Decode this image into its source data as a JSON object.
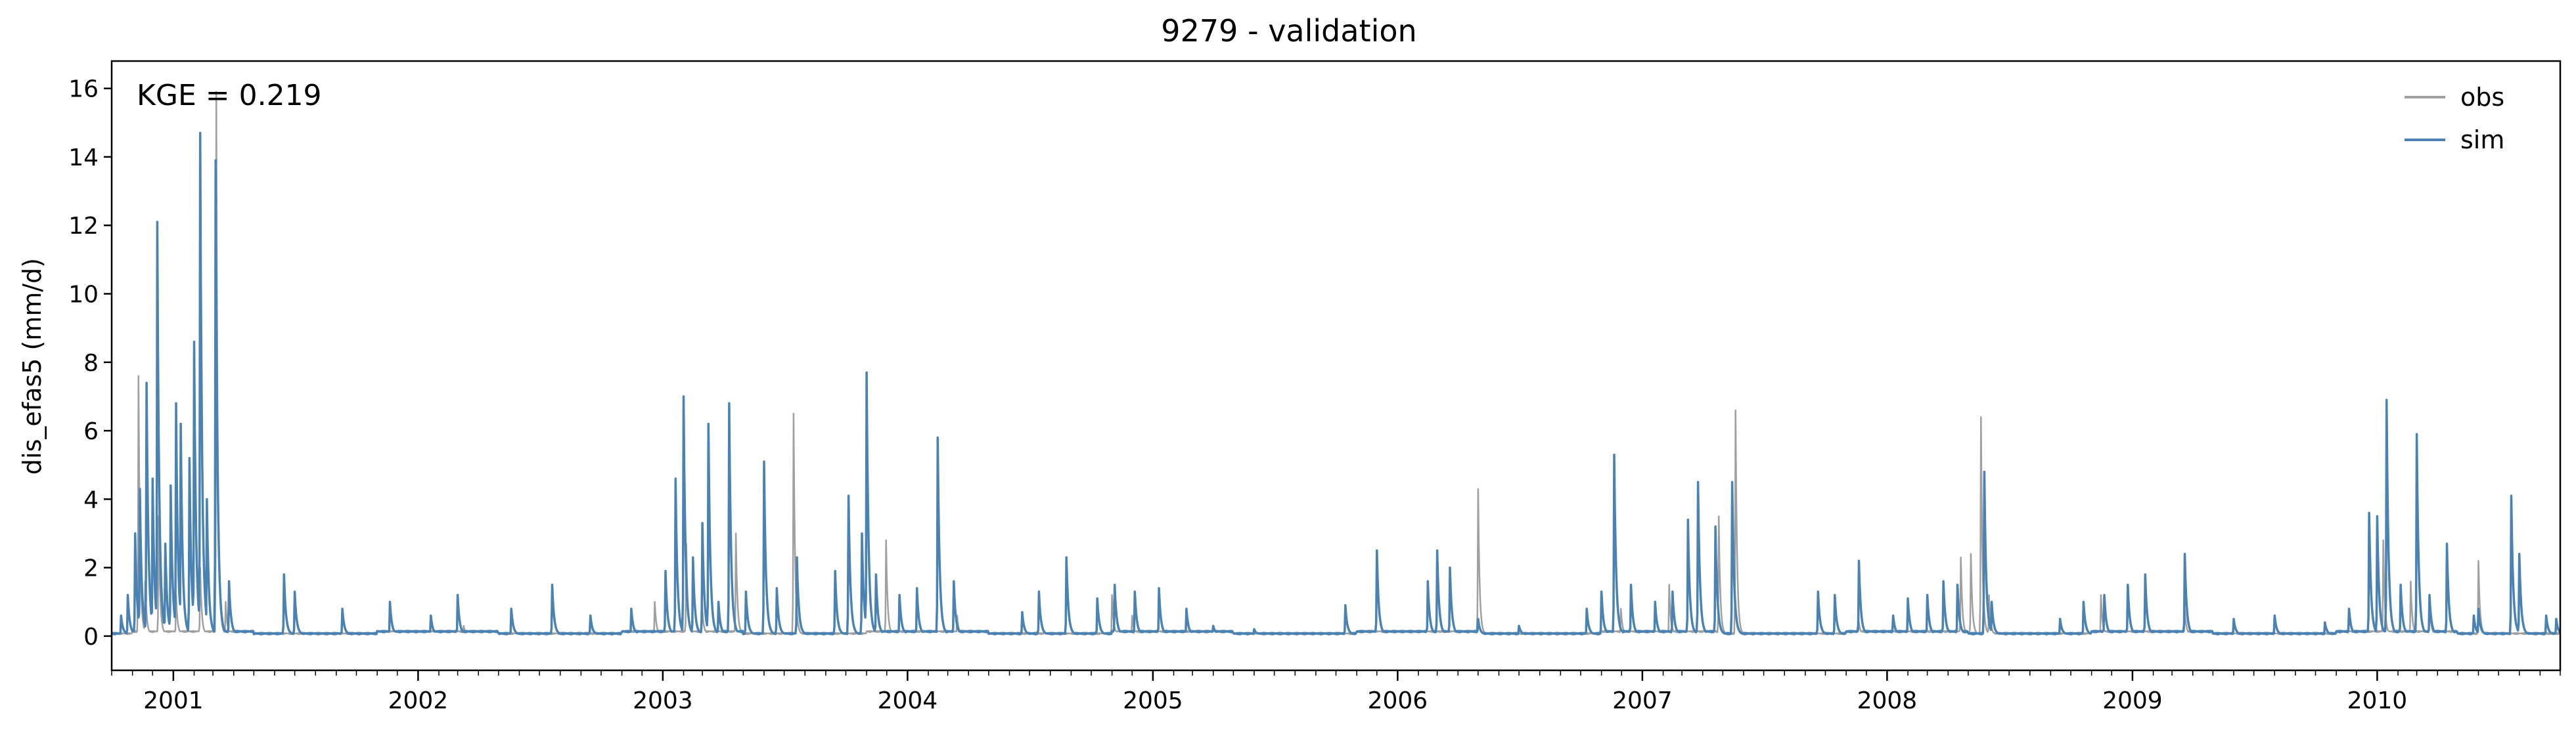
{
  "chart_data": {
    "type": "line",
    "title": "9279 - validation",
    "ylabel": "dis_efas5 (mm/d)",
    "xlabel": "",
    "annotation": "KGE = 0.219",
    "xlim": [
      "2000-10-01",
      "2010-10-01"
    ],
    "ylim": [
      -1,
      16.8
    ],
    "yticks": [
      0,
      2,
      4,
      6,
      8,
      10,
      12,
      14,
      16
    ],
    "xticks": [
      "2001",
      "2002",
      "2003",
      "2004",
      "2005",
      "2006",
      "2007",
      "2008",
      "2009",
      "2010"
    ],
    "grid": false,
    "legend": "top-right",
    "baseline": 0.05,
    "series": [
      {
        "name": "obs",
        "color": "#a0a0a0",
        "peaks": [
          [
            "2000-11-10",
            7.6
          ],
          [
            "2000-11-20",
            1.6
          ],
          [
            "2000-12-10",
            3.5
          ],
          [
            "2001-01-05",
            1.2
          ],
          [
            "2001-02-10",
            2.0
          ],
          [
            "2001-03-06",
            15.9
          ],
          [
            "2001-03-20",
            1.0
          ],
          [
            "2002-03-10",
            0.3
          ],
          [
            "2002-12-20",
            1.0
          ],
          [
            "2003-02-05",
            2.7
          ],
          [
            "2003-02-28",
            1.2
          ],
          [
            "2003-04-20",
            3.0
          ],
          [
            "2003-07-15",
            6.5
          ],
          [
            "2003-11-30",
            2.8
          ],
          [
            "2004-03-15",
            0.6
          ],
          [
            "2004-11-01",
            1.2
          ],
          [
            "2004-12-01",
            0.6
          ],
          [
            "2005-04-01",
            0.3
          ],
          [
            "2006-05-01",
            4.3
          ],
          [
            "2006-11-30",
            0.8
          ],
          [
            "2007-02-10",
            1.5
          ],
          [
            "2007-04-25",
            3.5
          ],
          [
            "2007-05-20",
            6.6
          ],
          [
            "2007-11-20",
            0.4
          ],
          [
            "2008-04-20",
            2.3
          ],
          [
            "2008-05-05",
            2.4
          ],
          [
            "2008-05-20",
            6.4
          ],
          [
            "2008-06-01",
            1.2
          ],
          [
            "2008-11-15",
            1.2
          ],
          [
            "2009-03-20",
            0.8
          ],
          [
            "2010-01-10",
            2.8
          ],
          [
            "2010-02-20",
            1.6
          ],
          [
            "2010-03-20",
            1.0
          ],
          [
            "2010-06-01",
            2.2
          ]
        ]
      },
      {
        "name": "sim",
        "color": "#4a82b4",
        "peaks": [
          [
            "2000-10-15",
            0.6
          ],
          [
            "2000-10-25",
            1.2
          ],
          [
            "2000-11-05",
            3.0
          ],
          [
            "2000-11-12",
            4.3
          ],
          [
            "2000-11-22",
            7.4
          ],
          [
            "2000-12-01",
            4.6
          ],
          [
            "2000-12-08",
            12.1
          ],
          [
            "2000-12-20",
            2.7
          ],
          [
            "2000-12-28",
            4.4
          ],
          [
            "2001-01-05",
            6.8
          ],
          [
            "2001-01-12",
            6.2
          ],
          [
            "2001-01-25",
            5.2
          ],
          [
            "2001-02-01",
            8.6
          ],
          [
            "2001-02-10",
            14.7
          ],
          [
            "2001-02-20",
            4.0
          ],
          [
            "2001-03-05",
            13.9
          ],
          [
            "2001-03-25",
            1.6
          ],
          [
            "2001-06-15",
            1.8
          ],
          [
            "2001-07-01",
            1.3
          ],
          [
            "2001-09-10",
            0.8
          ],
          [
            "2001-11-20",
            1.0
          ],
          [
            "2002-01-20",
            0.6
          ],
          [
            "2002-03-01",
            1.2
          ],
          [
            "2002-05-20",
            0.8
          ],
          [
            "2002-07-20",
            1.5
          ],
          [
            "2002-09-15",
            0.6
          ],
          [
            "2002-11-15",
            0.8
          ],
          [
            "2003-01-05",
            1.9
          ],
          [
            "2003-01-20",
            4.6
          ],
          [
            "2003-02-01",
            7.0
          ],
          [
            "2003-02-15",
            2.3
          ],
          [
            "2003-03-01",
            3.3
          ],
          [
            "2003-03-10",
            6.2
          ],
          [
            "2003-03-25",
            1.0
          ],
          [
            "2003-04-10",
            6.8
          ],
          [
            "2003-05-05",
            1.3
          ],
          [
            "2003-06-01",
            5.1
          ],
          [
            "2003-06-20",
            1.4
          ],
          [
            "2003-07-20",
            2.3
          ],
          [
            "2003-09-15",
            1.9
          ],
          [
            "2003-10-05",
            4.1
          ],
          [
            "2003-10-25",
            3.0
          ],
          [
            "2003-11-01",
            7.7
          ],
          [
            "2003-11-15",
            1.8
          ],
          [
            "2003-12-20",
            1.2
          ],
          [
            "2004-01-15",
            1.4
          ],
          [
            "2004-02-15",
            5.8
          ],
          [
            "2004-03-10",
            1.6
          ],
          [
            "2004-06-20",
            0.7
          ],
          [
            "2004-07-15",
            1.3
          ],
          [
            "2004-08-25",
            2.3
          ],
          [
            "2004-10-10",
            1.1
          ],
          [
            "2004-11-05",
            1.5
          ],
          [
            "2004-12-05",
            1.3
          ],
          [
            "2005-01-10",
            1.4
          ],
          [
            "2005-02-20",
            0.8
          ],
          [
            "2005-04-01",
            0.3
          ],
          [
            "2005-06-01",
            0.2
          ],
          [
            "2005-10-15",
            0.9
          ],
          [
            "2005-12-01",
            2.5
          ],
          [
            "2006-02-15",
            1.6
          ],
          [
            "2006-03-01",
            2.5
          ],
          [
            "2006-03-20",
            2.0
          ],
          [
            "2006-05-01",
            0.5
          ],
          [
            "2006-07-01",
            0.3
          ],
          [
            "2006-10-10",
            0.8
          ],
          [
            "2006-11-01",
            1.3
          ],
          [
            "2006-11-20",
            5.3
          ],
          [
            "2006-12-15",
            1.5
          ],
          [
            "2007-01-20",
            1.0
          ],
          [
            "2007-02-15",
            1.3
          ],
          [
            "2007-03-10",
            3.4
          ],
          [
            "2007-03-25",
            4.5
          ],
          [
            "2007-04-20",
            3.2
          ],
          [
            "2007-05-15",
            4.5
          ],
          [
            "2007-09-20",
            1.3
          ],
          [
            "2007-10-15",
            1.2
          ],
          [
            "2007-11-20",
            2.2
          ],
          [
            "2008-01-10",
            0.6
          ],
          [
            "2008-02-01",
            1.1
          ],
          [
            "2008-03-01",
            1.2
          ],
          [
            "2008-03-25",
            1.6
          ],
          [
            "2008-04-15",
            1.5
          ],
          [
            "2008-05-25",
            4.8
          ],
          [
            "2008-06-05",
            1.0
          ],
          [
            "2008-09-15",
            0.5
          ],
          [
            "2008-10-20",
            1.0
          ],
          [
            "2008-11-20",
            1.2
          ],
          [
            "2008-12-25",
            1.5
          ],
          [
            "2009-01-20",
            1.8
          ],
          [
            "2009-03-20",
            2.4
          ],
          [
            "2009-06-01",
            0.5
          ],
          [
            "2009-08-01",
            0.6
          ],
          [
            "2009-10-15",
            0.4
          ],
          [
            "2009-11-20",
            0.8
          ],
          [
            "2009-12-20",
            3.6
          ],
          [
            "2010-01-01",
            3.5
          ],
          [
            "2010-01-15",
            6.9
          ],
          [
            "2010-02-05",
            1.5
          ],
          [
            "2010-03-01",
            5.9
          ],
          [
            "2010-03-20",
            1.2
          ],
          [
            "2010-04-15",
            2.7
          ],
          [
            "2010-05-25",
            0.6
          ],
          [
            "2010-06-01",
            0.8
          ],
          [
            "2010-07-20",
            4.1
          ],
          [
            "2010-08-01",
            2.4
          ],
          [
            "2010-09-10",
            0.6
          ],
          [
            "2010-09-25",
            0.5
          ]
        ]
      }
    ]
  }
}
